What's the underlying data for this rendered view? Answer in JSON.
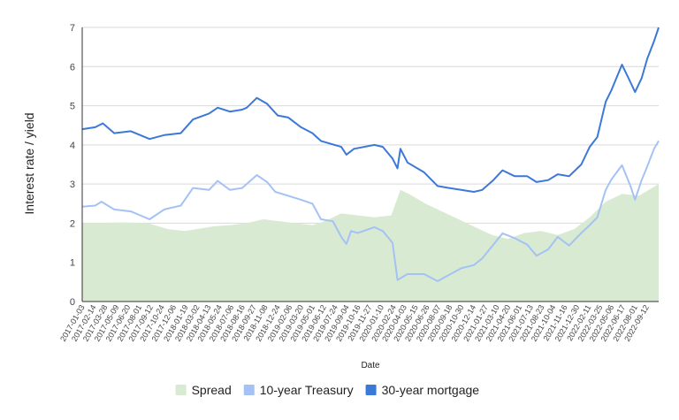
{
  "chart_data": {
    "type": "line",
    "title": "",
    "xlabel": "Date",
    "ylabel": "Interest rate / yield",
    "ylim": [
      0,
      7
    ],
    "yticks": [
      "0",
      "1",
      "2",
      "3",
      "4",
      "5",
      "6",
      "7"
    ],
    "grid": "horizontal",
    "legend_position": "bottom",
    "x_range": [
      "2017-01-03",
      "2022-10-27"
    ],
    "x_tick_labels": [
      "2017-01-03",
      "2017-02-14",
      "2017-03-28",
      "2017-05-09",
      "2017-06-20",
      "2017-08-01",
      "2017-09-12",
      "2017-10-24",
      "2017-12-06",
      "2018-01-19",
      "2018-03-02",
      "2018-04-13",
      "2018-05-24",
      "2018-07-06",
      "2018-08-16",
      "2018-09-27",
      "2018-11-08",
      "2018-12-24",
      "2019-02-06",
      "2019-03-20",
      "2019-05-01",
      "2019-06-12",
      "2019-07-24",
      "2019-09-04",
      "2019-10-16",
      "2019-11-27",
      "2020-01-10",
      "2020-02-24",
      "2020-04-03",
      "2020-05-15",
      "2020-06-26",
      "2020-08-07",
      "2020-09-18",
      "2020-10-30",
      "2020-12-14",
      "2021-01-27",
      "2021-03-10",
      "2021-04-20",
      "2021-06-01",
      "2021-07-13",
      "2021-08-23",
      "2021-10-04",
      "2021-11-16",
      "2021-12-30",
      "2022-02-11",
      "2022-03-25",
      "2022-05-06",
      "2022-06-17",
      "2022-08-01",
      "2022-09-12"
    ],
    "series": [
      {
        "name": "Spread",
        "render": "area",
        "color": "#d9ead3",
        "points": [
          [
            "2017-01-03",
            2.0
          ],
          [
            "2017-03-01",
            2.0
          ],
          [
            "2017-06-01",
            2.02
          ],
          [
            "2017-09-01",
            2.0
          ],
          [
            "2017-11-15",
            1.85
          ],
          [
            "2018-01-15",
            1.8
          ],
          [
            "2018-03-01",
            1.85
          ],
          [
            "2018-05-01",
            1.92
          ],
          [
            "2018-07-01",
            1.95
          ],
          [
            "2018-09-01",
            2.0
          ],
          [
            "2018-11-01",
            2.1
          ],
          [
            "2019-01-01",
            2.05
          ],
          [
            "2019-03-01",
            2.0
          ],
          [
            "2019-05-01",
            1.95
          ],
          [
            "2019-06-15",
            2.05
          ],
          [
            "2019-08-15",
            2.25
          ],
          [
            "2019-10-15",
            2.2
          ],
          [
            "2019-12-15",
            2.15
          ],
          [
            "2020-02-15",
            2.2
          ],
          [
            "2020-03-20",
            2.85
          ],
          [
            "2020-04-20",
            2.75
          ],
          [
            "2020-06-20",
            2.5
          ],
          [
            "2020-08-20",
            2.3
          ],
          [
            "2020-10-20",
            2.1
          ],
          [
            "2020-12-20",
            1.9
          ],
          [
            "2021-02-20",
            1.7
          ],
          [
            "2021-04-20",
            1.6
          ],
          [
            "2021-06-20",
            1.75
          ],
          [
            "2021-08-20",
            1.8
          ],
          [
            "2021-10-20",
            1.7
          ],
          [
            "2021-12-20",
            1.85
          ],
          [
            "2022-02-15",
            2.15
          ],
          [
            "2022-04-15",
            2.55
          ],
          [
            "2022-06-15",
            2.75
          ],
          [
            "2022-08-15",
            2.7
          ],
          [
            "2022-10-27",
            3.0
          ]
        ]
      },
      {
        "name": "10-year Treasury",
        "render": "line",
        "color": "#a4c2f4",
        "points": [
          [
            "2017-01-03",
            2.42
          ],
          [
            "2017-02-20",
            2.45
          ],
          [
            "2017-03-15",
            2.55
          ],
          [
            "2017-05-01",
            2.35
          ],
          [
            "2017-07-01",
            2.3
          ],
          [
            "2017-09-08",
            2.1
          ],
          [
            "2017-11-01",
            2.35
          ],
          [
            "2018-01-01",
            2.45
          ],
          [
            "2018-02-15",
            2.9
          ],
          [
            "2018-04-15",
            2.85
          ],
          [
            "2018-05-17",
            3.08
          ],
          [
            "2018-07-01",
            2.85
          ],
          [
            "2018-08-15",
            2.9
          ],
          [
            "2018-10-08",
            3.23
          ],
          [
            "2018-11-15",
            3.05
          ],
          [
            "2018-12-15",
            2.8
          ],
          [
            "2019-02-01",
            2.7
          ],
          [
            "2019-03-20",
            2.6
          ],
          [
            "2019-05-01",
            2.5
          ],
          [
            "2019-06-01",
            2.1
          ],
          [
            "2019-07-15",
            2.05
          ],
          [
            "2019-08-15",
            1.65
          ],
          [
            "2019-09-03",
            1.47
          ],
          [
            "2019-09-20",
            1.8
          ],
          [
            "2019-10-15",
            1.75
          ],
          [
            "2019-12-15",
            1.9
          ],
          [
            "2020-01-15",
            1.8
          ],
          [
            "2020-02-20",
            1.5
          ],
          [
            "2020-03-09",
            0.55
          ],
          [
            "2020-04-15",
            0.7
          ],
          [
            "2020-06-15",
            0.7
          ],
          [
            "2020-08-04",
            0.52
          ],
          [
            "2020-09-15",
            0.68
          ],
          [
            "2020-10-30",
            0.85
          ],
          [
            "2020-12-15",
            0.93
          ],
          [
            "2021-01-15",
            1.1
          ],
          [
            "2021-02-25",
            1.45
          ],
          [
            "2021-03-31",
            1.74
          ],
          [
            "2021-05-15",
            1.62
          ],
          [
            "2021-06-30",
            1.45
          ],
          [
            "2021-08-03",
            1.17
          ],
          [
            "2021-09-15",
            1.33
          ],
          [
            "2021-10-20",
            1.65
          ],
          [
            "2021-12-01",
            1.43
          ],
          [
            "2022-01-15",
            1.75
          ],
          [
            "2022-02-15",
            1.95
          ],
          [
            "2022-03-15",
            2.15
          ],
          [
            "2022-04-15",
            2.85
          ],
          [
            "2022-05-06",
            3.12
          ],
          [
            "2022-06-14",
            3.48
          ],
          [
            "2022-07-15",
            2.95
          ],
          [
            "2022-08-01",
            2.6
          ],
          [
            "2022-08-25",
            3.1
          ],
          [
            "2022-09-15",
            3.45
          ],
          [
            "2022-10-10",
            3.9
          ],
          [
            "2022-10-27",
            4.1
          ]
        ]
      },
      {
        "name": "30-year mortgage",
        "render": "line",
        "color": "#3c78d8",
        "points": [
          [
            "2017-01-03",
            4.4
          ],
          [
            "2017-02-20",
            4.45
          ],
          [
            "2017-03-20",
            4.55
          ],
          [
            "2017-05-01",
            4.3
          ],
          [
            "2017-07-01",
            4.35
          ],
          [
            "2017-09-08",
            4.15
          ],
          [
            "2017-11-01",
            4.25
          ],
          [
            "2018-01-01",
            4.3
          ],
          [
            "2018-02-15",
            4.65
          ],
          [
            "2018-04-15",
            4.8
          ],
          [
            "2018-05-17",
            4.95
          ],
          [
            "2018-07-01",
            4.85
          ],
          [
            "2018-08-15",
            4.9
          ],
          [
            "2018-09-01",
            4.95
          ],
          [
            "2018-10-08",
            5.2
          ],
          [
            "2018-11-15",
            5.05
          ],
          [
            "2018-12-24",
            4.75
          ],
          [
            "2019-02-01",
            4.7
          ],
          [
            "2019-03-20",
            4.45
          ],
          [
            "2019-05-01",
            4.3
          ],
          [
            "2019-06-01",
            4.1
          ],
          [
            "2019-08-15",
            3.95
          ],
          [
            "2019-09-03",
            3.75
          ],
          [
            "2019-10-01",
            3.9
          ],
          [
            "2019-12-15",
            4.0
          ],
          [
            "2020-01-15",
            3.95
          ],
          [
            "2020-02-20",
            3.65
          ],
          [
            "2020-03-09",
            3.4
          ],
          [
            "2020-03-20",
            3.9
          ],
          [
            "2020-04-15",
            3.55
          ],
          [
            "2020-06-15",
            3.3
          ],
          [
            "2020-08-04",
            2.95
          ],
          [
            "2020-09-15",
            2.9
          ],
          [
            "2020-10-30",
            2.85
          ],
          [
            "2020-12-15",
            2.8
          ],
          [
            "2021-01-15",
            2.85
          ],
          [
            "2021-02-25",
            3.1
          ],
          [
            "2021-03-31",
            3.35
          ],
          [
            "2021-05-15",
            3.2
          ],
          [
            "2021-06-30",
            3.2
          ],
          [
            "2021-08-03",
            3.05
          ],
          [
            "2021-09-15",
            3.1
          ],
          [
            "2021-10-20",
            3.25
          ],
          [
            "2021-12-01",
            3.2
          ],
          [
            "2022-01-15",
            3.5
          ],
          [
            "2022-02-15",
            3.95
          ],
          [
            "2022-03-15",
            4.2
          ],
          [
            "2022-04-15",
            5.1
          ],
          [
            "2022-05-06",
            5.4
          ],
          [
            "2022-06-14",
            6.05
          ],
          [
            "2022-07-15",
            5.6
          ],
          [
            "2022-08-01",
            5.35
          ],
          [
            "2022-08-25",
            5.7
          ],
          [
            "2022-09-15",
            6.2
          ],
          [
            "2022-10-10",
            6.65
          ],
          [
            "2022-10-27",
            7.0
          ]
        ]
      }
    ]
  }
}
